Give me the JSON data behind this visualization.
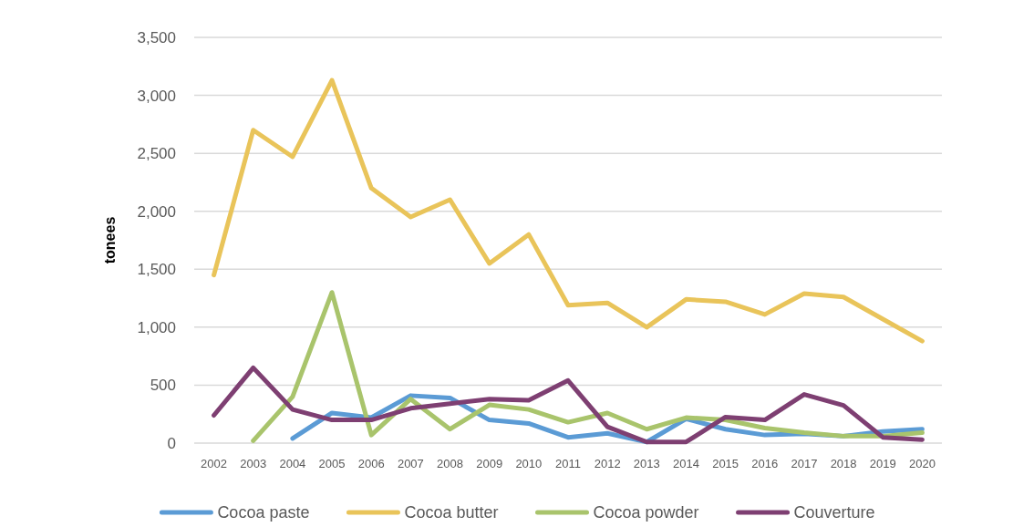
{
  "chart_data": {
    "type": "line",
    "ylabel": "tonees",
    "categories": [
      "2002",
      "2003",
      "2004",
      "2005",
      "2006",
      "2007",
      "2008",
      "2009",
      "2010",
      "2011",
      "2012",
      "2013",
      "2014",
      "2015",
      "2016",
      "2017",
      "2018",
      "2019",
      "2020"
    ],
    "series": [
      {
        "name": "Cocoa paste",
        "color": "#5b9bd5",
        "values": [
          null,
          null,
          40,
          260,
          220,
          410,
          390,
          200,
          170,
          50,
          85,
          10,
          210,
          120,
          70,
          80,
          60,
          100,
          120
        ]
      },
      {
        "name": "Cocoa butter",
        "color": "#e9c45a",
        "values": [
          1450,
          2700,
          2470,
          3130,
          2200,
          1950,
          2100,
          1550,
          1800,
          1190,
          1210,
          1000,
          1240,
          1220,
          1110,
          1290,
          1260,
          1070,
          880
        ]
      },
      {
        "name": "Cocoa powder",
        "color": "#a9c46c",
        "values": [
          null,
          20,
          400,
          1300,
          70,
          380,
          120,
          330,
          290,
          180,
          260,
          120,
          220,
          200,
          130,
          90,
          60,
          60,
          90
        ]
      },
      {
        "name": "Couverture",
        "color": "#7e3f72",
        "values": [
          240,
          650,
          290,
          200,
          200,
          300,
          340,
          380,
          370,
          540,
          140,
          10,
          10,
          225,
          200,
          420,
          325,
          50,
          30
        ]
      }
    ],
    "ylim": [
      0,
      3500
    ],
    "yticks": [
      0,
      500,
      {
        "value": 1000,
        "label": "1,000"
      },
      {
        "value": 1500,
        "label": "1,500"
      },
      {
        "value": 2000,
        "label": "2,000"
      },
      {
        "value": 2500,
        "label": "2,500"
      },
      {
        "value": 3000,
        "label": "3,000"
      },
      {
        "value": 3500,
        "label": "3,500"
      }
    ],
    "grid": "y",
    "legend": "bottom"
  }
}
